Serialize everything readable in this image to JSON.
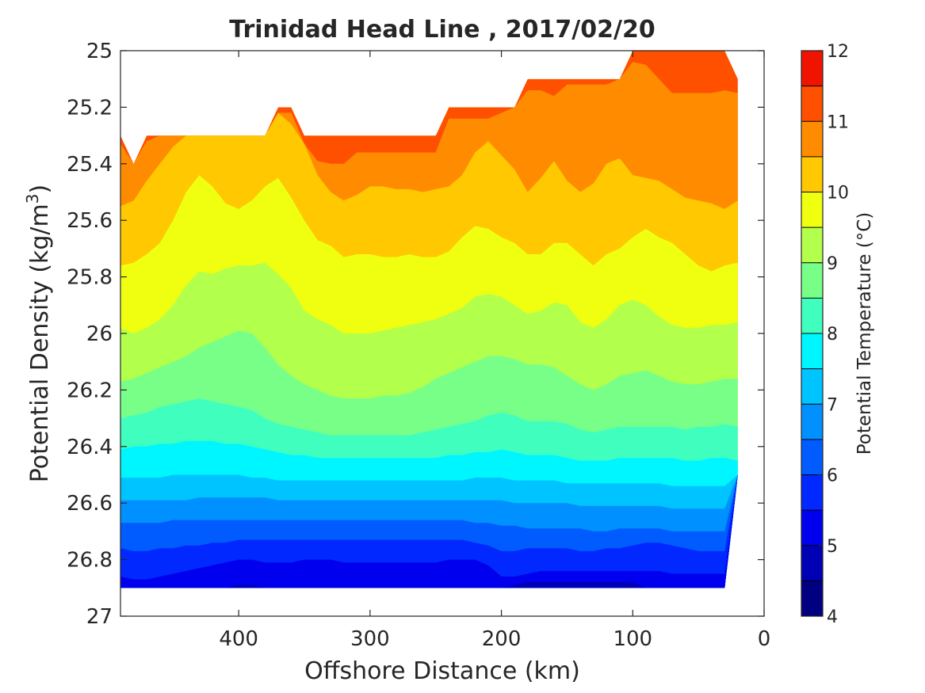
{
  "chart_data": {
    "type": "contourf",
    "title": "Trinidad Head Line , 2017/02/20",
    "xlabel": "Offshore Distance (km)",
    "ylabel": {
      "prefix": "Potential Density (kg/m",
      "superscript": "3",
      "suffix": ")"
    },
    "colorbar_label": "Potential Temperature (°C)",
    "xlim": [
      490,
      0
    ],
    "x_reversed": true,
    "ylim": [
      25,
      27
    ],
    "y_reversed": true,
    "xticks": [
      400,
      300,
      200,
      100,
      0
    ],
    "xtick_labels": [
      "400",
      "300",
      "200",
      "100",
      "0"
    ],
    "yticks": [
      25,
      25.2,
      25.4,
      25.6,
      25.8,
      26,
      26.2,
      26.4,
      26.6,
      26.8,
      27
    ],
    "ytick_labels": [
      "25",
      "25.2",
      "25.4",
      "25.6",
      "25.8",
      "26",
      "26.2",
      "26.4",
      "26.6",
      "26.8",
      "27"
    ],
    "colorbar": {
      "range": [
        4,
        12
      ],
      "ticks": [
        4,
        5,
        6,
        7,
        8,
        9,
        10,
        11,
        12
      ],
      "tick_labels": [
        "4",
        "5",
        "6",
        "7",
        "8",
        "9",
        "10",
        "11",
        "12"
      ],
      "levels": [
        4,
        4.5,
        5,
        5.5,
        6,
        6.5,
        7,
        7.5,
        8,
        8.5,
        9,
        9.5,
        10,
        10.5,
        11,
        11.5,
        12
      ],
      "colormap": "jet",
      "colors": [
        "#000080",
        "#0000b4",
        "#0000ee",
        "#0028ff",
        "#005cff",
        "#0090ff",
        "#00c4ff",
        "#00f6ff",
        "#40ffbe",
        "#78ff88",
        "#b2ff4c",
        "#f0ff10",
        "#ffc800",
        "#ff8c00",
        "#ff5000",
        "#f01400",
        "#b40000"
      ]
    },
    "x_samples": [
      490,
      480,
      470,
      460,
      450,
      440,
      430,
      420,
      410,
      400,
      390,
      380,
      370,
      360,
      350,
      340,
      330,
      320,
      310,
      300,
      290,
      280,
      270,
      260,
      250,
      240,
      230,
      220,
      210,
      200,
      190,
      180,
      170,
      160,
      150,
      140,
      130,
      120,
      110,
      100,
      90,
      80,
      70,
      60,
      50,
      40,
      30,
      20
    ],
    "data_top": [
      25.3,
      25.4,
      25.3,
      25.3,
      25.3,
      25.3,
      25.3,
      25.3,
      25.3,
      25.3,
      25.3,
      25.3,
      25.2,
      25.2,
      25.3,
      25.3,
      25.3,
      25.3,
      25.3,
      25.3,
      25.3,
      25.3,
      25.3,
      25.3,
      25.3,
      25.2,
      25.2,
      25.2,
      25.2,
      25.2,
      25.2,
      25.1,
      25.1,
      25.1,
      25.1,
      25.1,
      25.1,
      25.1,
      25.1,
      25,
      25,
      25,
      25,
      25,
      25,
      25,
      25,
      25.1
    ],
    "data_bottom": [
      26.9,
      26.9,
      26.9,
      26.9,
      26.9,
      26.9,
      26.9,
      26.9,
      26.9,
      26.9,
      26.9,
      26.9,
      26.9,
      26.9,
      26.9,
      26.9,
      26.9,
      26.9,
      26.9,
      26.9,
      26.9,
      26.9,
      26.9,
      26.9,
      26.9,
      26.9,
      26.9,
      26.9,
      26.9,
      26.9,
      26.9,
      26.9,
      26.9,
      26.9,
      26.9,
      26.9,
      26.9,
      26.9,
      26.9,
      26.9,
      26.9,
      26.9,
      26.9,
      26.9,
      26.9,
      26.9,
      26.9,
      26.5
    ],
    "isotherms": [
      {
        "temp": 11,
        "density": [
          25.33,
          25.34,
          25.32,
          25.3,
          25.3,
          25.3,
          25.3,
          25.3,
          25.3,
          25.3,
          25.3,
          25.3,
          25.22,
          25.22,
          25.33,
          25.39,
          25.4,
          25.4,
          25.36,
          25.36,
          25.36,
          25.36,
          25.36,
          25.36,
          25.36,
          25.24,
          25.24,
          25.24,
          25.24,
          25.22,
          25.16,
          25.14,
          25.14,
          25.16,
          25.12,
          25.12,
          25.12,
          25.12,
          25.1,
          25.04,
          25.05,
          25.1,
          25.15,
          25.15,
          25.15,
          25.15,
          25.14,
          25.15
        ]
      },
      {
        "temp": 10.5,
        "density": [
          25.55,
          25.53,
          25.46,
          25.4,
          25.34,
          25.3,
          25.3,
          25.3,
          25.3,
          25.3,
          25.3,
          25.3,
          25.22,
          25.26,
          25.33,
          25.44,
          25.5,
          25.53,
          25.51,
          25.48,
          25.48,
          25.49,
          25.49,
          25.5,
          25.49,
          25.48,
          25.44,
          25.36,
          25.32,
          25.37,
          25.42,
          25.5,
          25.45,
          25.39,
          25.46,
          25.5,
          25.47,
          25.4,
          25.38,
          25.44,
          25.45,
          25.46,
          25.49,
          25.52,
          25.53,
          25.54,
          25.56,
          25.53
        ]
      },
      {
        "temp": 10,
        "density": [
          25.76,
          25.75,
          25.72,
          25.68,
          25.6,
          25.5,
          25.44,
          25.48,
          25.54,
          25.56,
          25.53,
          25.48,
          25.45,
          25.52,
          25.6,
          25.67,
          25.69,
          25.73,
          25.72,
          25.72,
          25.73,
          25.73,
          25.72,
          25.73,
          25.73,
          25.71,
          25.66,
          25.62,
          25.63,
          25.66,
          25.68,
          25.72,
          25.72,
          25.68,
          25.68,
          25.72,
          25.76,
          25.72,
          25.7,
          25.66,
          25.63,
          25.66,
          25.68,
          25.72,
          25.76,
          25.78,
          25.76,
          25.75
        ]
      },
      {
        "temp": 9.5,
        "density": [
          25.98,
          26.0,
          25.98,
          25.95,
          25.9,
          25.83,
          25.78,
          25.79,
          25.77,
          25.76,
          25.76,
          25.75,
          25.79,
          25.84,
          25.92,
          25.95,
          25.97,
          26.0,
          26.0,
          26.0,
          25.99,
          25.98,
          25.97,
          25.96,
          25.95,
          25.93,
          25.91,
          25.87,
          25.86,
          25.87,
          25.9,
          25.93,
          25.92,
          25.89,
          25.9,
          25.96,
          25.98,
          25.95,
          25.9,
          25.88,
          25.9,
          25.94,
          25.97,
          25.98,
          25.98,
          25.97,
          25.97,
          25.96
        ]
      },
      {
        "temp": 9,
        "density": [
          26.17,
          26.16,
          26.14,
          26.12,
          26.1,
          26.08,
          26.05,
          26.03,
          26.01,
          25.99,
          26.0,
          26.05,
          26.11,
          26.15,
          26.18,
          26.2,
          26.22,
          26.23,
          26.23,
          26.23,
          26.22,
          26.22,
          26.21,
          26.19,
          26.16,
          26.14,
          26.12,
          26.1,
          26.08,
          26.08,
          26.09,
          26.11,
          26.11,
          26.12,
          26.15,
          26.18,
          26.2,
          26.18,
          26.15,
          26.14,
          26.13,
          26.15,
          26.17,
          26.18,
          26.18,
          26.17,
          26.16,
          26.16
        ]
      },
      {
        "temp": 8.5,
        "density": [
          26.3,
          26.29,
          26.28,
          26.26,
          26.25,
          26.24,
          26.23,
          26.24,
          26.25,
          26.26,
          26.27,
          26.3,
          26.32,
          26.33,
          26.34,
          26.35,
          26.36,
          26.36,
          26.36,
          26.36,
          26.36,
          26.36,
          26.36,
          26.35,
          26.34,
          26.33,
          26.32,
          26.31,
          26.29,
          26.28,
          26.29,
          26.31,
          26.31,
          26.31,
          26.32,
          26.34,
          26.35,
          26.34,
          26.33,
          26.33,
          26.33,
          26.33,
          26.33,
          26.34,
          26.33,
          26.33,
          26.32,
          26.33
        ]
      },
      {
        "temp": 8,
        "density": [
          26.41,
          26.4,
          26.4,
          26.39,
          26.39,
          26.38,
          26.38,
          26.38,
          26.39,
          26.39,
          26.4,
          26.41,
          26.42,
          26.43,
          26.43,
          26.44,
          26.44,
          26.44,
          26.44,
          26.44,
          26.44,
          26.44,
          26.44,
          26.44,
          26.44,
          26.43,
          26.43,
          26.42,
          26.42,
          26.41,
          26.42,
          26.43,
          26.43,
          26.43,
          26.44,
          26.45,
          26.45,
          26.45,
          26.44,
          26.44,
          26.44,
          26.44,
          26.44,
          26.45,
          26.45,
          26.44,
          26.44,
          26.45
        ]
      },
      {
        "temp": 7.5,
        "density": [
          26.51,
          26.51,
          26.51,
          26.51,
          26.5,
          26.5,
          26.5,
          26.5,
          26.5,
          26.5,
          26.51,
          26.51,
          26.52,
          26.52,
          26.52,
          26.52,
          26.52,
          26.52,
          26.52,
          26.52,
          26.52,
          26.52,
          26.52,
          26.52,
          26.52,
          26.52,
          26.52,
          26.51,
          26.51,
          26.51,
          26.52,
          26.52,
          26.52,
          26.52,
          26.53,
          26.53,
          26.53,
          26.53,
          26.53,
          26.53,
          26.53,
          26.53,
          26.54,
          26.54,
          26.54,
          26.54,
          26.54,
          26.55
        ]
      },
      {
        "temp": 7,
        "density": [
          26.59,
          26.59,
          26.59,
          26.59,
          26.59,
          26.59,
          26.58,
          26.58,
          26.58,
          26.58,
          26.58,
          26.58,
          26.59,
          26.59,
          26.59,
          26.59,
          26.59,
          26.59,
          26.59,
          26.59,
          26.59,
          26.59,
          26.59,
          26.59,
          26.59,
          26.59,
          26.59,
          26.59,
          26.59,
          26.59,
          26.6,
          26.6,
          26.6,
          26.6,
          26.6,
          26.61,
          26.61,
          26.61,
          26.61,
          26.61,
          26.61,
          26.61,
          26.62,
          26.62,
          26.62,
          26.62,
          26.62,
          26.62
        ]
      },
      {
        "temp": 6.5,
        "density": [
          26.67,
          26.67,
          26.67,
          26.67,
          26.66,
          26.66,
          26.66,
          26.66,
          26.66,
          26.66,
          26.66,
          26.66,
          26.66,
          26.66,
          26.66,
          26.66,
          26.66,
          26.66,
          26.66,
          26.66,
          26.66,
          26.66,
          26.66,
          26.66,
          26.66,
          26.66,
          26.66,
          26.67,
          26.67,
          26.68,
          26.68,
          26.69,
          26.69,
          26.69,
          26.69,
          26.69,
          26.7,
          26.7,
          26.69,
          26.69,
          26.69,
          26.69,
          26.7,
          26.7,
          26.7,
          26.7,
          26.7,
          26.7
        ]
      },
      {
        "temp": 6,
        "density": [
          26.76,
          26.77,
          26.77,
          26.76,
          26.76,
          26.75,
          26.75,
          26.74,
          26.74,
          26.73,
          26.73,
          26.73,
          26.73,
          26.73,
          26.73,
          26.73,
          26.73,
          26.73,
          26.73,
          26.73,
          26.73,
          26.73,
          26.73,
          26.73,
          26.73,
          26.73,
          26.73,
          26.74,
          26.75,
          26.77,
          26.77,
          26.76,
          26.76,
          26.76,
          26.76,
          26.77,
          26.77,
          26.76,
          26.76,
          26.75,
          26.74,
          26.74,
          26.75,
          26.76,
          26.77,
          26.77,
          26.77,
          26.77
        ]
      },
      {
        "temp": 5.5,
        "density": [
          26.86,
          26.87,
          26.87,
          26.86,
          26.85,
          26.84,
          26.83,
          26.82,
          26.81,
          26.8,
          26.8,
          26.81,
          26.81,
          26.81,
          26.8,
          26.8,
          26.8,
          26.81,
          26.81,
          26.81,
          26.81,
          26.81,
          26.81,
          26.81,
          26.81,
          26.8,
          26.8,
          26.8,
          26.82,
          26.86,
          26.86,
          26.85,
          26.84,
          26.84,
          26.84,
          26.84,
          26.84,
          26.84,
          26.84,
          26.84,
          26.84,
          26.84,
          26.85,
          26.85,
          26.85,
          26.85,
          26.85,
          26.85
        ]
      },
      {
        "temp": 5,
        "density": [
          26.9,
          26.9,
          26.9,
          26.9,
          26.9,
          26.9,
          26.9,
          26.9,
          26.9,
          26.89,
          26.89,
          26.9,
          26.9,
          26.9,
          26.9,
          26.9,
          26.9,
          26.9,
          26.9,
          26.9,
          26.9,
          26.9,
          26.9,
          26.9,
          26.9,
          26.9,
          26.9,
          26.9,
          26.9,
          26.9,
          26.89,
          26.88,
          26.88,
          26.88,
          26.88,
          26.88,
          26.88,
          26.88,
          26.88,
          26.88,
          26.9,
          26.9,
          26.9,
          26.9,
          26.9,
          26.9,
          26.9,
          26.9
        ]
      }
    ]
  }
}
